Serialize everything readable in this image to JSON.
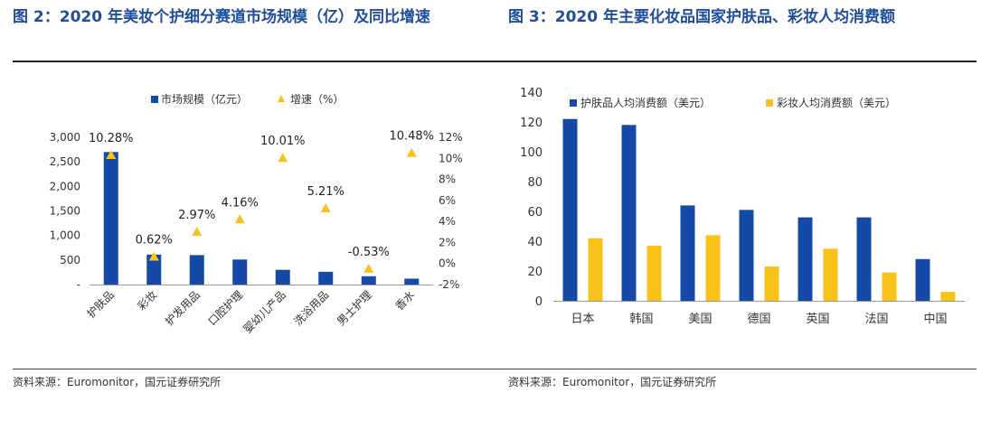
{
  "figures": {
    "left_title": "图 2：2020 年美妆个护细分赛道市场规模（亿）及同比增速",
    "right_title": "图 3：2020 年主要化妆品国家护肤品、彩妆人均消费额",
    "left_source": "资料来源：Euromonitor，国元证券研究所",
    "right_source": "资料来源：Euromonitor，国元证券研究所"
  },
  "colors": {
    "blue": "#1449a8",
    "yellow": "#f9c21b",
    "title": "#1f4e9c"
  },
  "chart_data": [
    {
      "type": "bar",
      "categories": [
        "护肤品",
        "彩妆",
        "护发用品",
        "口腔护理",
        "婴幼儿产品",
        "洗浴用品",
        "男士护理",
        "香水"
      ],
      "series": [
        {
          "name": "市场规模（亿元）",
          "kind": "bar",
          "axis": "left",
          "color": "#1449a8",
          "values": [
            2700,
            610,
            600,
            510,
            300,
            260,
            170,
            120
          ]
        },
        {
          "name": "增速（%）",
          "kind": "scatter",
          "axis": "right",
          "color": "#f9c21b",
          "values": [
            10.28,
            0.62,
            2.97,
            4.16,
            10.01,
            5.21,
            -0.53,
            10.48
          ],
          "labels": [
            "10.28%",
            "0.62%",
            "2.97%",
            "4.16%",
            "10.01%",
            "5.21%",
            "-0.53%",
            "10.48%"
          ]
        }
      ],
      "ylim_left": [
        0,
        3000
      ],
      "yticks_left": [
        "-",
        "500",
        "1,000",
        "1,500",
        "2,000",
        "2,500",
        "3,000"
      ],
      "ylim_right": [
        -2,
        12
      ],
      "yticks_right": [
        "-2%",
        "0%",
        "2%",
        "4%",
        "6%",
        "8%",
        "10%",
        "12%"
      ],
      "legend": "top-center",
      "grid": false
    },
    {
      "type": "bar",
      "categories": [
        "日本",
        "韩国",
        "美国",
        "德国",
        "英国",
        "法国",
        "中国"
      ],
      "series": [
        {
          "name": "护肤品人均消费额（美元）",
          "color": "#1449a8",
          "values": [
            122,
            118,
            64,
            61,
            56,
            56,
            28
          ]
        },
        {
          "name": "彩妆人均消费额（美元）",
          "color": "#f9c21b",
          "values": [
            42,
            37,
            44,
            23,
            35,
            19,
            6
          ]
        }
      ],
      "ylim": [
        0,
        140
      ],
      "yticks": [
        "0",
        "20",
        "40",
        "60",
        "80",
        "100",
        "120",
        "140"
      ],
      "legend": "top",
      "grid": false
    }
  ]
}
